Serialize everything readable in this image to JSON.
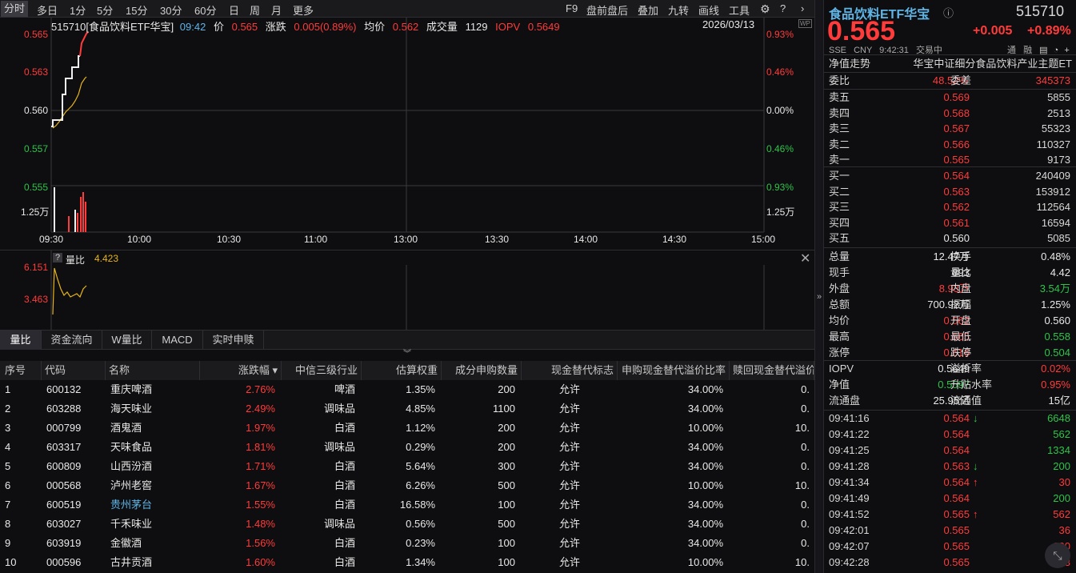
{
  "toolbar": {
    "periods": [
      "分时",
      "多日",
      "1分",
      "5分",
      "15分",
      "30分",
      "60分",
      "日",
      "周",
      "月",
      "更多"
    ],
    "right": [
      "F9",
      "盘前盘后",
      "叠加",
      "九转",
      "画线",
      "工具"
    ]
  },
  "chart": {
    "header": {
      "code_name": "515710[食品饮料ETF华宝]",
      "time": "09:42",
      "price_label": "价",
      "price": "0.565",
      "chg_label": "涨跌",
      "chg": "0.005(0.89%)",
      "avg_label": "均价",
      "avg": "0.562",
      "vol_label": "成交量",
      "vol": "1129",
      "iopv_label": "IOPV",
      "iopv": "0.5649",
      "date": "2026/03/13"
    },
    "y_left": [
      "0.565",
      "0.563",
      "0.560",
      "0.557",
      "0.555"
    ],
    "y_right": [
      "0.93%",
      "0.46%",
      "0.00%",
      "0.46%",
      "0.93%"
    ],
    "vol_axis_left": "1.25万",
    "vol_axis_right": "1.25万",
    "x_ticks": [
      "09:30",
      "10:00",
      "10:30",
      "11:00",
      "11:30",
      "13:00",
      "13:30",
      "14:00",
      "14:30",
      "15:00"
    ]
  },
  "indicator": {
    "q": "?",
    "name": "量比",
    "value": "4.423",
    "y": [
      "6.151",
      "3.463"
    ]
  },
  "subtabs": [
    "量比",
    "资金流向",
    "W量比",
    "MACD",
    "实时申赎"
  ],
  "table": {
    "headers": [
      "序号",
      "代码",
      "名称",
      "涨跌幅 ▾",
      "中信三级行业",
      "估算权重",
      "成分申购数量",
      "现金替代标志",
      "申购现金替代溢价比率",
      "赎回现金替代溢价"
    ],
    "rows": [
      [
        "1",
        "600132",
        "重庆啤酒",
        "2.76%",
        "啤酒",
        "1.35%",
        "200",
        "允许",
        "34.00%",
        "0."
      ],
      [
        "2",
        "603288",
        "海天味业",
        "2.49%",
        "调味品",
        "4.85%",
        "1100",
        "允许",
        "34.00%",
        "0."
      ],
      [
        "3",
        "000799",
        "酒鬼酒",
        "1.97%",
        "白酒",
        "1.12%",
        "200",
        "允许",
        "10.00%",
        "10."
      ],
      [
        "4",
        "603317",
        "天味食品",
        "1.81%",
        "调味品",
        "0.29%",
        "200",
        "允许",
        "34.00%",
        "0."
      ],
      [
        "5",
        "600809",
        "山西汾酒",
        "1.71%",
        "白酒",
        "5.64%",
        "300",
        "允许",
        "34.00%",
        "0."
      ],
      [
        "6",
        "000568",
        "泸州老窖",
        "1.67%",
        "白酒",
        "6.26%",
        "500",
        "允许",
        "10.00%",
        "10."
      ],
      [
        "7",
        "600519",
        "贵州茅台",
        "1.55%",
        "白酒",
        "16.58%",
        "100",
        "允许",
        "34.00%",
        "0."
      ],
      [
        "8",
        "603027",
        "千禾味业",
        "1.48%",
        "调味品",
        "0.56%",
        "500",
        "允许",
        "34.00%",
        "0."
      ],
      [
        "9",
        "603919",
        "金徽酒",
        "1.56%",
        "白酒",
        "0.23%",
        "100",
        "允许",
        "34.00%",
        "0."
      ],
      [
        "10",
        "000596",
        "古井贡酒",
        "1.60%",
        "白酒",
        "1.34%",
        "100",
        "允许",
        "10.00%",
        "10."
      ]
    ]
  },
  "quote": {
    "name": "食品饮料ETF华宝",
    "code": "515710",
    "price": "0.565",
    "chg": "+0.005",
    "pct": "+0.89%",
    "exchange": "SSE",
    "currency": "CNY",
    "time": "9:42:31",
    "status": "交易中",
    "badges": [
      "通",
      "融"
    ],
    "nav_label": "净值走势",
    "index_name": "华宝中证细分食品饮料产业主题ET",
    "weibi_label": "委比",
    "weibi": "48.52%",
    "weicha_label": "委差",
    "weicha": "345373",
    "asks": [
      [
        "卖五",
        "0.569",
        "5855"
      ],
      [
        "卖四",
        "0.568",
        "2513"
      ],
      [
        "卖三",
        "0.567",
        "55323"
      ],
      [
        "卖二",
        "0.566",
        "110327"
      ],
      [
        "卖一",
        "0.565",
        "9173"
      ]
    ],
    "bids": [
      [
        "买一",
        "0.564",
        "240409"
      ],
      [
        "买二",
        "0.563",
        "153912"
      ],
      [
        "买三",
        "0.562",
        "112564"
      ],
      [
        "买四",
        "0.561",
        "16594"
      ],
      [
        "买五",
        "0.560",
        "5085"
      ]
    ],
    "stats": [
      [
        "总量",
        "12.47万",
        "换手",
        "0.48%"
      ],
      [
        "现手",
        "893",
        "量比",
        "4.42"
      ],
      [
        "外盘",
        "8.93万",
        "内盘",
        "3.54万"
      ],
      [
        "总额",
        "700.92万",
        "振幅",
        "1.25%"
      ],
      [
        "均价",
        "0.562",
        "开盘",
        "0.560"
      ],
      [
        "最高",
        "0.565",
        "最低",
        "0.558"
      ],
      [
        "涨停",
        "0.616",
        "跌停",
        "0.504"
      ]
    ],
    "stats2": [
      [
        "IOPV",
        "0.5649",
        "溢折率",
        "0.02%"
      ],
      [
        "净值",
        "0.5597",
        "升贴水率",
        "0.95%"
      ],
      [
        "流通盘",
        "25.95亿",
        "流通值",
        "15亿"
      ]
    ],
    "ticks": [
      [
        "09:41:16",
        "0.564",
        "↓",
        "6648"
      ],
      [
        "09:41:22",
        "0.564",
        "",
        "562"
      ],
      [
        "09:41:25",
        "0.564",
        "",
        "1334"
      ],
      [
        "09:41:28",
        "0.563",
        "↓",
        "200"
      ],
      [
        "09:41:34",
        "0.564",
        "↑",
        "30"
      ],
      [
        "09:41:49",
        "0.564",
        "",
        "200"
      ],
      [
        "09:41:52",
        "0.565",
        "↑",
        "562"
      ],
      [
        "09:42:01",
        "0.565",
        "",
        "36"
      ],
      [
        "09:42:07",
        "0.565",
        "",
        "200"
      ],
      [
        "09:42:28",
        "0.565",
        "",
        "893"
      ]
    ]
  },
  "colors": {
    "up": "#ff3b3b",
    "down": "#2ec34a",
    "bg": "#0e0e10",
    "avg_line": "#e8b418"
  }
}
